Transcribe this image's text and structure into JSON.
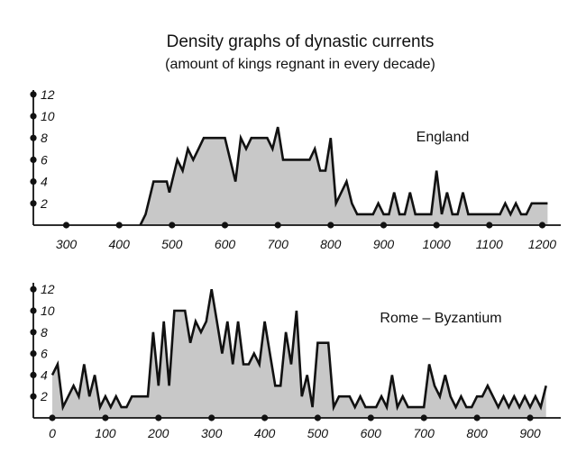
{
  "title": "Density graphs of dynastic currents",
  "subtitle": "(amount of kings regnant in every decade)",
  "colors": {
    "fill": "#c8c8c8",
    "stroke": "#111111",
    "axis": "#111111"
  },
  "chart_data": [
    {
      "type": "area",
      "name": "England",
      "label": "England",
      "ylim": [
        0,
        13
      ],
      "yticks": [
        2,
        4,
        6,
        8,
        10,
        12
      ],
      "xlim": [
        240,
        1240
      ],
      "xticks": [
        300,
        400,
        500,
        600,
        700,
        800,
        900,
        1000,
        1100,
        1200
      ],
      "xdots": [
        300,
        400,
        500,
        600,
        700,
        800,
        900,
        1000,
        1100,
        1200
      ],
      "x": [
        440,
        450,
        460,
        465,
        490,
        495,
        510,
        520,
        530,
        540,
        550,
        560,
        570,
        580,
        590,
        600,
        620,
        630,
        640,
        650,
        660,
        680,
        690,
        700,
        710,
        720,
        730,
        750,
        760,
        770,
        780,
        790,
        800,
        810,
        830,
        840,
        850,
        860,
        870,
        880,
        890,
        900,
        910,
        920,
        930,
        940,
        950,
        960,
        970,
        980,
        990,
        1000,
        1010,
        1020,
        1030,
        1040,
        1050,
        1060,
        1070,
        1080,
        1090,
        1100,
        1110,
        1120,
        1130,
        1140,
        1150,
        1160,
        1170,
        1180,
        1190,
        1200,
        1210
      ],
      "y": [
        0,
        1,
        3,
        4,
        4,
        3,
        6,
        5,
        7,
        6,
        7,
        8,
        8,
        8,
        8,
        8,
        4,
        8,
        7,
        8,
        8,
        8,
        7,
        9,
        6,
        6,
        6,
        6,
        6,
        7,
        5,
        5,
        8,
        2,
        4,
        2,
        1,
        1,
        1,
        1,
        2,
        1,
        1,
        3,
        1,
        1,
        3,
        1,
        1,
        1,
        1,
        5,
        1,
        3,
        1,
        1,
        3,
        1,
        1,
        1,
        1,
        1,
        1,
        1,
        2,
        1,
        2,
        1,
        1,
        2,
        2,
        2,
        2
      ]
    },
    {
      "type": "area",
      "name": "Rome – Byzantium",
      "label": "Rome – Byzantium",
      "ylim": [
        0,
        13
      ],
      "yticks": [
        2,
        4,
        6,
        8,
        10,
        12
      ],
      "xlim": [
        -5,
        960
      ],
      "xticks": [
        0,
        100,
        200,
        300,
        400,
        500,
        600,
        700,
        800,
        900
      ],
      "xdots": [
        0,
        100,
        200,
        300,
        400,
        500,
        600,
        700,
        800,
        900
      ],
      "x": [
        0,
        10,
        20,
        30,
        40,
        50,
        60,
        70,
        80,
        90,
        100,
        110,
        120,
        130,
        140,
        150,
        160,
        170,
        180,
        190,
        200,
        210,
        220,
        230,
        240,
        250,
        260,
        270,
        280,
        290,
        300,
        310,
        320,
        330,
        340,
        350,
        360,
        370,
        380,
        390,
        400,
        410,
        420,
        430,
        440,
        450,
        460,
        470,
        480,
        490,
        500,
        510,
        520,
        530,
        540,
        550,
        560,
        570,
        580,
        590,
        600,
        610,
        620,
        630,
        640,
        650,
        660,
        670,
        680,
        690,
        700,
        710,
        720,
        730,
        740,
        750,
        760,
        770,
        780,
        790,
        800,
        810,
        820,
        830,
        840,
        850,
        860,
        870,
        880,
        890,
        900,
        910,
        920,
        930
      ],
      "y": [
        4,
        5,
        1,
        2,
        3,
        2,
        5,
        2,
        4,
        1,
        2,
        1,
        2,
        1,
        1,
        2,
        2,
        2,
        2,
        8,
        3,
        9,
        3,
        10,
        10,
        10,
        7,
        9,
        8,
        9,
        12,
        9,
        6,
        9,
        5,
        9,
        5,
        5,
        6,
        5,
        9,
        6,
        3,
        3,
        8,
        5,
        10,
        2,
        4,
        1,
        7,
        7,
        7,
        1,
        2,
        2,
        2,
        1,
        2,
        1,
        1,
        1,
        2,
        1,
        4,
        1,
        2,
        1,
        1,
        1,
        1,
        5,
        3,
        2,
        4,
        2,
        1,
        2,
        1,
        1,
        2,
        2,
        3,
        2,
        1,
        2,
        1,
        2,
        1,
        2,
        1,
        2,
        1,
        3
      ]
    }
  ]
}
